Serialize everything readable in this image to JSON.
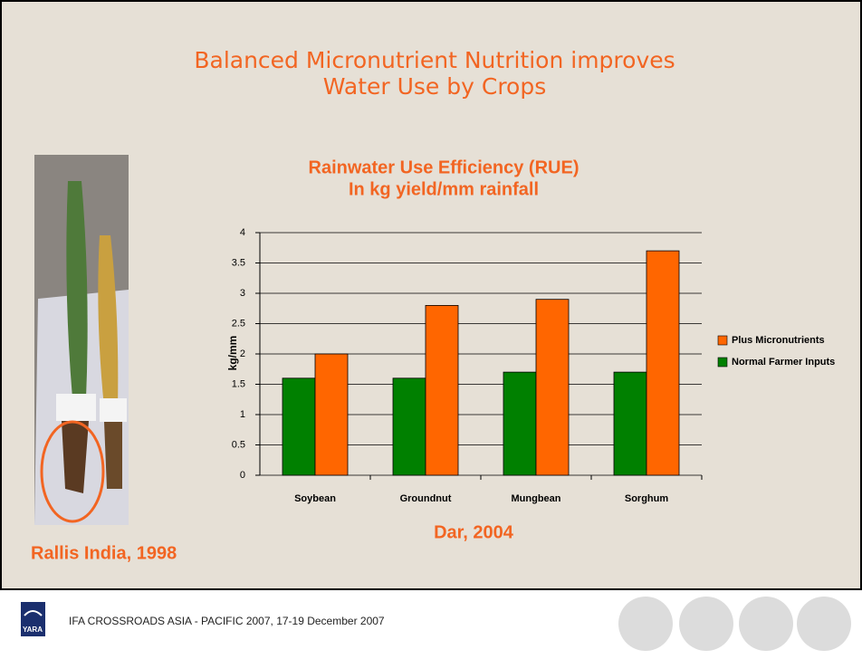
{
  "slide_title": [
    "Balanced Micronutrient Nutrition improves",
    "Water Use by Crops"
  ],
  "photo_caption": "Rallis India, 1998",
  "footer": "IFA CROSSROADS ASIA - PACIFIC 2007, 17-19 December 2007",
  "chart_data": {
    "type": "bar",
    "title": [
      "Rainwater Use Efficiency (RUE)",
      "In kg yield/mm rainfall"
    ],
    "ylabel": "kg/mm",
    "categories": [
      "Soybean",
      "Groundnut",
      "Mungbean",
      "Sorghum"
    ],
    "series": [
      {
        "name": "Normal Farmer Inputs",
        "color": "#008000",
        "values": [
          1.6,
          1.6,
          1.7,
          1.7
        ]
      },
      {
        "name": "Plus Micronutrients",
        "color": "#ff6600",
        "values": [
          2.0,
          2.8,
          2.9,
          3.7
        ]
      }
    ],
    "ylim": [
      0,
      4
    ],
    "yticks": [
      0,
      0.5,
      1,
      1.5,
      2,
      2.5,
      3,
      3.5,
      4
    ],
    "grid": true,
    "source": "Dar, 2004"
  }
}
